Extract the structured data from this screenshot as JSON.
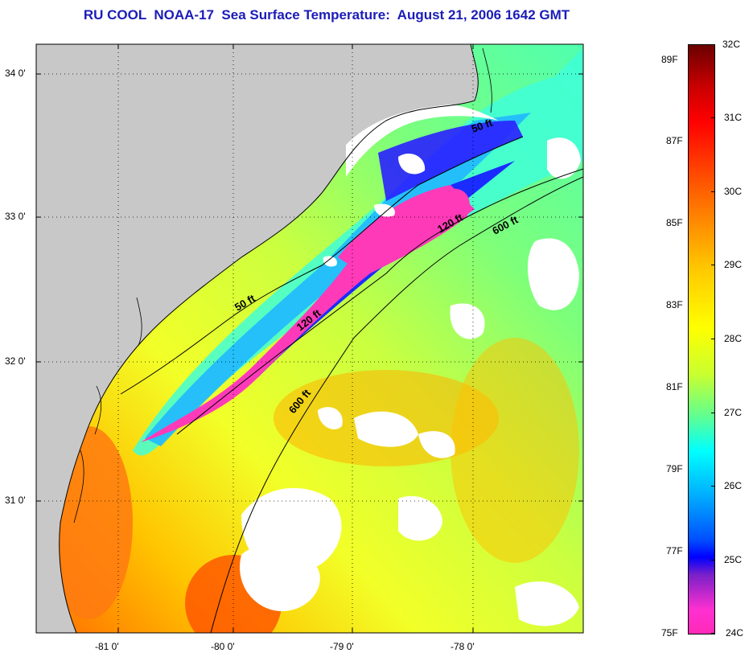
{
  "title": "RU COOL  NOAA-17  Sea Surface Temperature:  August 21, 2006 1642 GMT",
  "map": {
    "lon_labels": [
      "-81 0'",
      "-80 0'",
      "-79 0'",
      "-78 0'"
    ],
    "lat_labels": [
      "34 0'",
      "33 0'",
      "32 0'",
      "31 0'"
    ],
    "contours": [
      {
        "label": "50 ft",
        "id": "north"
      },
      {
        "label": "120 ft",
        "id": "north"
      },
      {
        "label": "600 ft",
        "id": "north"
      },
      {
        "label": "50 ft",
        "id": "south"
      },
      {
        "label": "120 ft",
        "id": "south"
      },
      {
        "label": "600 ft",
        "id": "south"
      }
    ]
  },
  "colorbar": {
    "celsius_labels": [
      "32C",
      "31C",
      "30C",
      "29C",
      "28C",
      "27C",
      "26C",
      "25C",
      "24C"
    ],
    "fahrenheit_labels": [
      "89F",
      "87F",
      "85F",
      "83F",
      "81F",
      "79F",
      "77F",
      "75F"
    ]
  },
  "colors": {
    "title": "#1c1cb8",
    "land": "#c8c8c8",
    "cloud": "#ffffff",
    "sst_warm": "#ff5a00",
    "sst_mid": "#f0ff20",
    "sst_cool": "#40ffd0",
    "sst_cold": "#0000ff",
    "sst_coldest": "#ff3ab0"
  }
}
